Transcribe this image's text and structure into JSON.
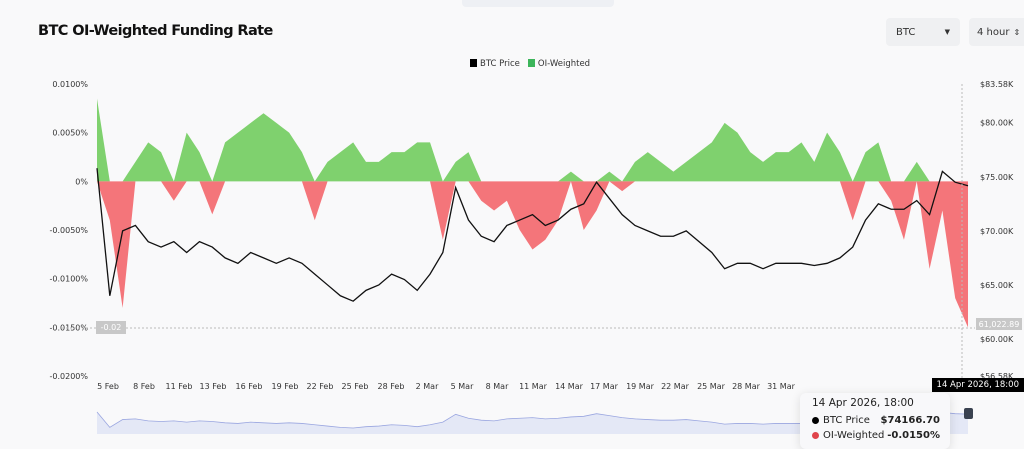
{
  "title": "BTC OI-Weighted Funding Rate",
  "controls": {
    "coin": "BTC",
    "interval": "4 hour"
  },
  "legend": [
    {
      "label": "BTC Price",
      "color": "#000000"
    },
    {
      "label": "OI-Weighted",
      "color": "#3cb55a"
    }
  ],
  "colors": {
    "positive": "#7fd16e",
    "negative": "#f4757a",
    "price": "#111111",
    "navigator": "#9aa6e0"
  },
  "tooltip": {
    "date": "14 Apr 2026, 18:00",
    "rows": [
      {
        "label": "BTC Price",
        "value": "$74166.70",
        "color": "#000000"
      },
      {
        "label": "OI-Weighted",
        "value": "-0.0150%",
        "color": "#e0444b"
      }
    ]
  },
  "crosshair": {
    "left_label": "-0.02",
    "right_label": "61,022.89",
    "x_label": "14 Apr 2026, 18:00"
  },
  "chart_data": {
    "type": "area+line",
    "date_range": [
      "5 Feb 2026",
      "14 Apr 2026"
    ],
    "x_ticks": [
      "5 Feb",
      "8 Feb",
      "11 Feb",
      "13 Feb",
      "16 Feb",
      "19 Feb",
      "22 Feb",
      "25 Feb",
      "28 Feb",
      "2 Mar",
      "5 Mar",
      "8 Mar",
      "11 Mar",
      "14 Mar",
      "17 Mar",
      "19 Mar",
      "22 Mar",
      "25 Mar",
      "28 Mar",
      "31 Mar"
    ],
    "y_left": {
      "ticks": [
        "0.0100%",
        "0.0050%",
        "0%",
        "-0.0050%",
        "-0.0100%",
        "-0.0150%",
        "-0.0200%"
      ],
      "range": [
        -0.02,
        0.01
      ]
    },
    "y_right": {
      "ticks": [
        "$83.58K",
        "$80.00K",
        "$75.00K",
        "$70.00K",
        "$65.00K",
        "$60.00K",
        "$56.58K"
      ],
      "range": [
        56.58,
        83.58
      ]
    },
    "series": [
      {
        "name": "OI-Weighted",
        "unit": "%",
        "values": [
          0.0085,
          -0.004,
          -0.013,
          0.002,
          0.004,
          0.003,
          -0.002,
          0.005,
          0.003,
          -0.0034,
          0.004,
          0.005,
          0.006,
          0.007,
          0.006,
          0.005,
          0.003,
          -0.004,
          0.002,
          0.003,
          0.004,
          0.002,
          0.002,
          0.003,
          0.003,
          0.004,
          0.004,
          -0.006,
          0.002,
          0.003,
          -0.002,
          -0.003,
          -0.002,
          -0.005,
          -0.007,
          -0.006,
          -0.004,
          0.001,
          -0.005,
          -0.003,
          0.001,
          -0.001,
          0.002,
          0.003,
          0.002,
          0.001,
          0.002,
          0.003,
          0.004,
          0.006,
          0.005,
          0.003,
          0.002,
          0.003,
          0.003,
          0.004,
          0.002,
          0.005,
          0.003,
          -0.004,
          0.003,
          0.004,
          -0.002,
          -0.006,
          0.002,
          -0.009,
          -0.003,
          -0.012,
          -0.015
        ]
      },
      {
        "name": "BTC Price",
        "unit": "$K",
        "values": [
          75.8,
          64,
          70,
          70.5,
          69,
          68.5,
          69,
          68,
          69,
          68.5,
          67.5,
          67,
          68,
          67.5,
          67,
          67.5,
          67,
          66,
          65,
          64,
          63.5,
          64.5,
          65,
          66,
          65.5,
          64.5,
          66,
          68,
          74,
          71,
          69.5,
          69,
          70.5,
          71,
          71.5,
          70.5,
          71,
          72,
          72.5,
          74.5,
          73,
          71.5,
          70.5,
          70,
          69.5,
          69.5,
          70,
          69,
          68,
          66.5,
          67,
          67,
          66.5,
          67,
          67,
          67,
          66.8,
          67,
          67.5,
          68.5,
          71,
          72.5,
          72,
          72,
          72.8,
          71.5,
          75.5,
          74.5,
          74.17
        ]
      }
    ]
  }
}
